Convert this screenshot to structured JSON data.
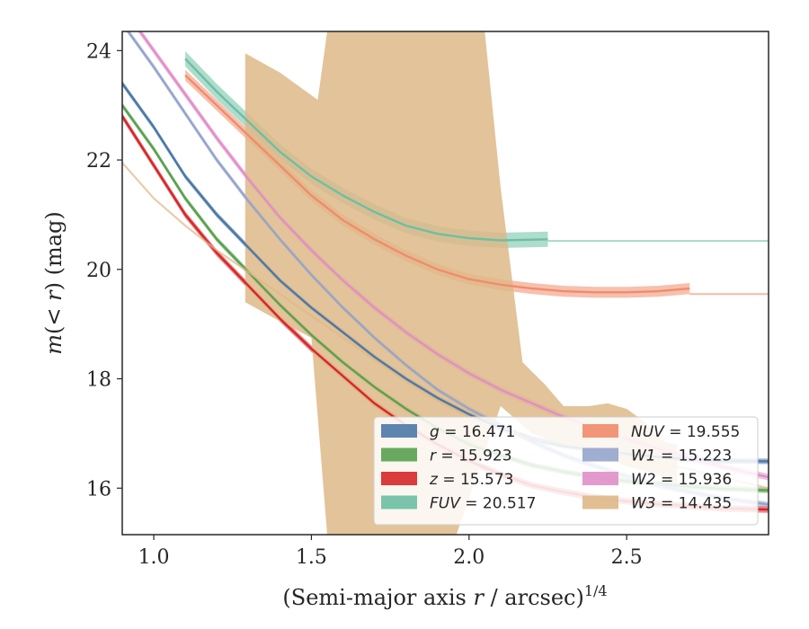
{
  "chart_data": {
    "type": "line",
    "xlabel": "(Semi-major axis r / arcsec)^1/4",
    "ylabel": "m(< r) (mag)",
    "xlim": [
      0.9,
      2.95
    ],
    "ylim": [
      24.35,
      15.15
    ],
    "y_inverted": true,
    "xticks": [
      "1.0",
      "1.5",
      "2.0",
      "2.5"
    ],
    "yticks": [
      "16",
      "18",
      "20",
      "22",
      "24"
    ],
    "legend_position": "lower-right",
    "series": [
      {
        "name": "g",
        "value": "16.471",
        "color": "#4c78a8",
        "band": 0.05,
        "points": [
          [
            0.9,
            23.4
          ],
          [
            1.0,
            22.6
          ],
          [
            1.1,
            21.7
          ],
          [
            1.2,
            21.0
          ],
          [
            1.3,
            20.4
          ],
          [
            1.4,
            19.8
          ],
          [
            1.5,
            19.3
          ],
          [
            1.6,
            18.85
          ],
          [
            1.7,
            18.4
          ],
          [
            1.8,
            18.0
          ],
          [
            1.9,
            17.65
          ],
          [
            2.0,
            17.35
          ],
          [
            2.1,
            17.1
          ],
          [
            2.2,
            16.9
          ],
          [
            2.3,
            16.78
          ],
          [
            2.4,
            16.7
          ],
          [
            2.5,
            16.62
          ],
          [
            2.6,
            16.57
          ],
          [
            2.7,
            16.53
          ],
          [
            2.8,
            16.5
          ],
          [
            2.95,
            16.49
          ]
        ]
      },
      {
        "name": "r",
        "value": "15.923",
        "color": "#59a14f",
        "band": 0.05,
        "points": [
          [
            0.9,
            23.0
          ],
          [
            1.0,
            22.2
          ],
          [
            1.1,
            21.3
          ],
          [
            1.2,
            20.55
          ],
          [
            1.3,
            19.95
          ],
          [
            1.4,
            19.35
          ],
          [
            1.5,
            18.8
          ],
          [
            1.6,
            18.3
          ],
          [
            1.7,
            17.85
          ],
          [
            1.8,
            17.45
          ],
          [
            1.9,
            17.1
          ],
          [
            2.0,
            16.8
          ],
          [
            2.1,
            16.6
          ],
          [
            2.2,
            16.42
          ],
          [
            2.3,
            16.3
          ],
          [
            2.4,
            16.2
          ],
          [
            2.5,
            16.13
          ],
          [
            2.6,
            16.08
          ],
          [
            2.7,
            16.03
          ],
          [
            2.8,
            15.99
          ],
          [
            2.95,
            15.96
          ]
        ]
      },
      {
        "name": "z",
        "value": "15.573",
        "color": "#d62728",
        "band": 0.06,
        "points": [
          [
            0.9,
            22.8
          ],
          [
            1.0,
            21.9
          ],
          [
            1.1,
            21.0
          ],
          [
            1.2,
            20.3
          ],
          [
            1.3,
            19.7
          ],
          [
            1.4,
            19.1
          ],
          [
            1.5,
            18.55
          ],
          [
            1.6,
            18.05
          ],
          [
            1.7,
            17.55
          ],
          [
            1.8,
            17.15
          ],
          [
            1.9,
            16.8
          ],
          [
            2.0,
            16.5
          ],
          [
            2.1,
            16.25
          ],
          [
            2.2,
            16.05
          ],
          [
            2.3,
            15.93
          ],
          [
            2.4,
            15.83
          ],
          [
            2.5,
            15.76
          ],
          [
            2.6,
            15.71
          ],
          [
            2.7,
            15.67
          ],
          [
            2.8,
            15.63
          ],
          [
            2.95,
            15.61
          ]
        ]
      },
      {
        "name": "FUV",
        "value": "20.517",
        "color": "#6cbfa4",
        "band": 0.14,
        "points": [
          [
            1.1,
            23.85
          ],
          [
            1.2,
            23.25
          ],
          [
            1.3,
            22.7
          ],
          [
            1.4,
            22.15
          ],
          [
            1.5,
            21.7
          ],
          [
            1.6,
            21.35
          ],
          [
            1.7,
            21.05
          ],
          [
            1.8,
            20.8
          ],
          [
            1.9,
            20.65
          ],
          [
            2.0,
            20.57
          ],
          [
            2.1,
            20.53
          ],
          [
            2.25,
            20.55
          ]
        ],
        "tail": [
          [
            2.25,
            20.52
          ],
          [
            2.95,
            20.52
          ]
        ]
      },
      {
        "name": "NUV",
        "value": "19.555",
        "color": "#f08c6c",
        "band": 0.1,
        "points": [
          [
            1.1,
            23.55
          ],
          [
            1.2,
            23.0
          ],
          [
            1.3,
            22.45
          ],
          [
            1.4,
            21.9
          ],
          [
            1.5,
            21.35
          ],
          [
            1.6,
            20.9
          ],
          [
            1.7,
            20.55
          ],
          [
            1.8,
            20.25
          ],
          [
            1.9,
            20.0
          ],
          [
            2.0,
            19.82
          ],
          [
            2.1,
            19.72
          ],
          [
            2.2,
            19.65
          ],
          [
            2.3,
            19.6
          ],
          [
            2.4,
            19.58
          ],
          [
            2.5,
            19.58
          ],
          [
            2.6,
            19.6
          ],
          [
            2.7,
            19.65
          ]
        ],
        "tail": [
          [
            2.7,
            19.55
          ],
          [
            2.95,
            19.55
          ]
        ]
      },
      {
        "name": "W1",
        "value": "15.223",
        "color": "#95a5cc",
        "band": 0.05,
        "points": [
          [
            0.9,
            24.5
          ],
          [
            1.0,
            23.7
          ],
          [
            1.1,
            22.85
          ],
          [
            1.2,
            22.0
          ],
          [
            1.3,
            21.25
          ],
          [
            1.4,
            20.55
          ],
          [
            1.5,
            19.9
          ],
          [
            1.6,
            19.3
          ],
          [
            1.7,
            18.75
          ],
          [
            1.8,
            18.25
          ],
          [
            1.9,
            17.8
          ],
          [
            2.0,
            17.45
          ],
          [
            2.1,
            17.15
          ],
          [
            2.2,
            16.85
          ],
          [
            2.3,
            16.6
          ],
          [
            2.4,
            16.4
          ],
          [
            2.5,
            16.22
          ],
          [
            2.6,
            16.05
          ],
          [
            2.7,
            15.93
          ],
          [
            2.8,
            15.82
          ],
          [
            2.95,
            15.7
          ]
        ]
      },
      {
        "name": "W2",
        "value": "15.936",
        "color": "#e08fc8",
        "band": 0.06,
        "points": [
          [
            0.9,
            24.8
          ],
          [
            1.0,
            24.0
          ],
          [
            1.1,
            23.2
          ],
          [
            1.2,
            22.4
          ],
          [
            1.3,
            21.65
          ],
          [
            1.4,
            20.95
          ],
          [
            1.5,
            20.35
          ],
          [
            1.6,
            19.8
          ],
          [
            1.7,
            19.3
          ],
          [
            1.8,
            18.85
          ],
          [
            1.9,
            18.45
          ],
          [
            2.0,
            18.1
          ],
          [
            2.1,
            17.8
          ],
          [
            2.2,
            17.55
          ],
          [
            2.3,
            17.3
          ],
          [
            2.4,
            17.1
          ],
          [
            2.5,
            16.9
          ],
          [
            2.6,
            16.72
          ],
          [
            2.7,
            16.55
          ],
          [
            2.8,
            16.4
          ],
          [
            2.95,
            16.2
          ]
        ]
      },
      {
        "name": "W3",
        "value": "14.435",
        "color": "#deb887",
        "line": [
          [
            0.9,
            21.95
          ],
          [
            1.0,
            21.3
          ],
          [
            1.1,
            20.8
          ],
          [
            1.2,
            20.35
          ],
          [
            1.3,
            19.95
          ],
          [
            1.4,
            19.55
          ],
          [
            1.5,
            19.15
          ],
          [
            1.6,
            18.75
          ],
          [
            1.7,
            18.35
          ],
          [
            1.8,
            17.95
          ],
          [
            1.9,
            17.6
          ],
          [
            2.0,
            17.3
          ],
          [
            2.1,
            17.05
          ],
          [
            2.2,
            16.9
          ],
          [
            2.3,
            16.8
          ],
          [
            2.4,
            16.72
          ],
          [
            2.5,
            16.6
          ],
          [
            2.6,
            16.45
          ],
          [
            2.7,
            16.35
          ],
          [
            2.8,
            16.2
          ],
          [
            2.95,
            16.0
          ]
        ],
        "upper": [
          [
            1.29,
            19.4
          ],
          [
            1.4,
            19.05
          ],
          [
            1.5,
            18.75
          ],
          [
            1.55,
            15.15
          ],
          [
            1.96,
            15.15
          ],
          [
            2.1,
            17.5
          ],
          [
            2.2,
            17.0
          ],
          [
            2.3,
            16.8
          ],
          [
            2.4,
            16.6
          ],
          [
            2.5,
            16.4
          ],
          [
            2.6,
            16.25
          ],
          [
            2.66,
            16.05
          ]
        ],
        "lower": [
          [
            1.29,
            23.95
          ],
          [
            1.4,
            23.6
          ],
          [
            1.52,
            23.1
          ],
          [
            1.55,
            24.35
          ],
          [
            2.05,
            24.35
          ],
          [
            2.1,
            21.5
          ],
          [
            2.17,
            18.3
          ],
          [
            2.24,
            17.9
          ],
          [
            2.3,
            17.5
          ],
          [
            2.38,
            17.5
          ],
          [
            2.44,
            17.55
          ],
          [
            2.5,
            17.45
          ],
          [
            2.56,
            17.2
          ],
          [
            2.62,
            16.85
          ],
          [
            2.66,
            16.8
          ]
        ]
      }
    ]
  }
}
